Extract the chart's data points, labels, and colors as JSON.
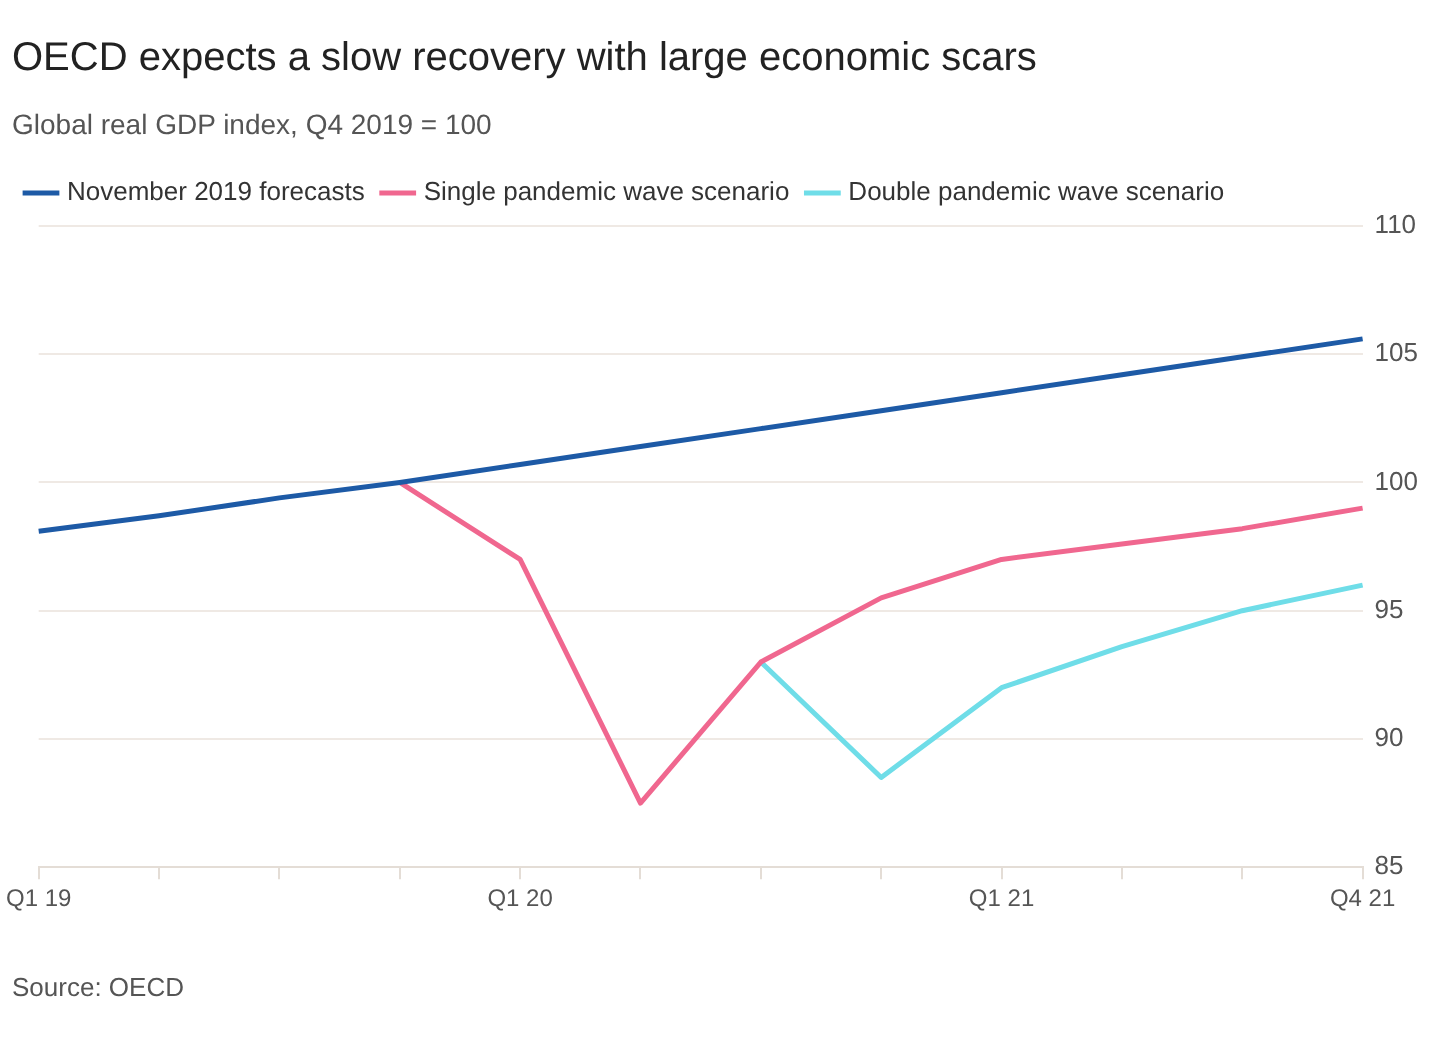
{
  "chart_data": {
    "type": "line",
    "title": "OECD expects a slow recovery with large economic scars",
    "subtitle": "Global real GDP index, Q4 2019 = 100",
    "categories": [
      "Q1 19",
      null,
      null,
      null,
      "Q1 20",
      null,
      null,
      null,
      "Q1 21",
      null,
      null,
      "Q4 21"
    ],
    "series": [
      {
        "name": "November 2019 forecasts",
        "color": "#1d5aa6",
        "values": [
          98.1,
          98.7,
          99.4,
          100,
          100.7,
          101.4,
          102.1,
          102.8,
          103.5,
          104.2,
          104.9,
          105.6
        ]
      },
      {
        "name": "Single pandemic wave scenario",
        "color": "#f0678f",
        "values": [
          null,
          null,
          null,
          100,
          97,
          87.5,
          93,
          95.5,
          97,
          97.6,
          98.2,
          99
        ]
      },
      {
        "name": "Double pandemic wave scenario",
        "color": "#6fdde8",
        "values": [
          null,
          null,
          null,
          null,
          null,
          null,
          93,
          88.5,
          92,
          93.6,
          95,
          96
        ]
      }
    ],
    "ylim": [
      85,
      110
    ],
    "yticks": [
      85,
      90,
      95,
      100,
      105,
      110
    ],
    "grid": "y",
    "legend": "top left",
    "marker": "none",
    "line_style": "solid",
    "annotations": [
      "Source: OECD"
    ]
  }
}
